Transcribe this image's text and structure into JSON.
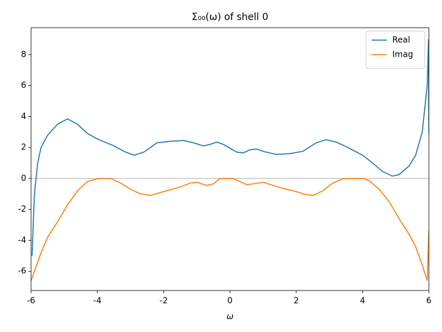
{
  "chart_data": {
    "type": "line",
    "title": "Σ₀₀(ω) of shell 0",
    "x_label": "ω",
    "xlim": [
      -6,
      6
    ],
    "ylim": [
      -7.24,
      9.74
    ],
    "xticks": [
      -6,
      -4,
      -2,
      0,
      2,
      4,
      6
    ],
    "yticks": [
      -6,
      -4,
      -2,
      0,
      2,
      4,
      6,
      8
    ],
    "reference_line": 0,
    "reference_color": "#cccccc",
    "legend": "upper right",
    "series": [
      {
        "name": "Real",
        "color": "#1f77b4",
        "x": [
          -5.97,
          -5.9,
          -5.8,
          -5.7,
          -5.5,
          -5.2,
          -4.9,
          -4.6,
          -4.3,
          -4.0,
          -3.5,
          -3.2,
          -2.9,
          -2.6,
          -2.2,
          -1.8,
          -1.4,
          -1.1,
          -0.8,
          -0.6,
          -0.4,
          -0.2,
          0,
          0.2,
          0.4,
          0.6,
          0.8,
          1.0,
          1.4,
          1.8,
          2.2,
          2.6,
          2.9,
          3.2,
          3.6,
          4.0,
          4.3,
          4.6,
          4.9,
          5.1,
          5.4,
          5.6,
          5.8,
          5.95,
          5.99,
          6.0
        ],
        "values": [
          -5,
          -1,
          1.0,
          2.0,
          2.8,
          3.5,
          3.85,
          3.5,
          2.9,
          2.55,
          2.1,
          1.75,
          1.5,
          1.7,
          2.3,
          2.4,
          2.45,
          2.3,
          2.1,
          2.2,
          2.35,
          2.2,
          1.95,
          1.7,
          1.65,
          1.85,
          1.9,
          1.75,
          1.55,
          1.6,
          1.75,
          2.3,
          2.5,
          2.35,
          1.95,
          1.5,
          1.0,
          0.45,
          0.15,
          0.25,
          0.8,
          1.5,
          3.0,
          6.0,
          9.0,
          2.9
        ]
      },
      {
        "name": "Imag",
        "color": "#ff7f0e",
        "x": [
          -6,
          -5.9,
          -5.7,
          -5.5,
          -5.2,
          -4.9,
          -4.6,
          -4.3,
          -4.0,
          -3.6,
          -3.3,
          -3.0,
          -2.7,
          -2.4,
          -2.0,
          -1.5,
          -1.2,
          -1.0,
          -0.7,
          -0.5,
          -0.3,
          0,
          0.1,
          0.2,
          0.5,
          0.7,
          1.0,
          1.3,
          1.6,
          2.0,
          2.2,
          2.5,
          2.8,
          3.1,
          3.4,
          4.0,
          4.2,
          4.5,
          4.8,
          5.1,
          5.4,
          5.6,
          5.8,
          5.95,
          6.0
        ],
        "values": [
          -6.6,
          -6.0,
          -4.8,
          -3.8,
          -2.8,
          -1.7,
          -0.8,
          -0.2,
          -0.02,
          0,
          -0.3,
          -0.7,
          -1.0,
          -1.1,
          -0.85,
          -0.55,
          -0.3,
          -0.25,
          -0.45,
          -0.35,
          -0.02,
          0,
          -0.02,
          -0.1,
          -0.4,
          -0.35,
          -0.25,
          -0.45,
          -0.65,
          -0.85,
          -1.0,
          -1.1,
          -0.8,
          -0.3,
          -0.02,
          0,
          -0.15,
          -0.7,
          -1.5,
          -2.6,
          -3.6,
          -4.4,
          -5.6,
          -6.6,
          -3.4
        ]
      }
    ]
  }
}
